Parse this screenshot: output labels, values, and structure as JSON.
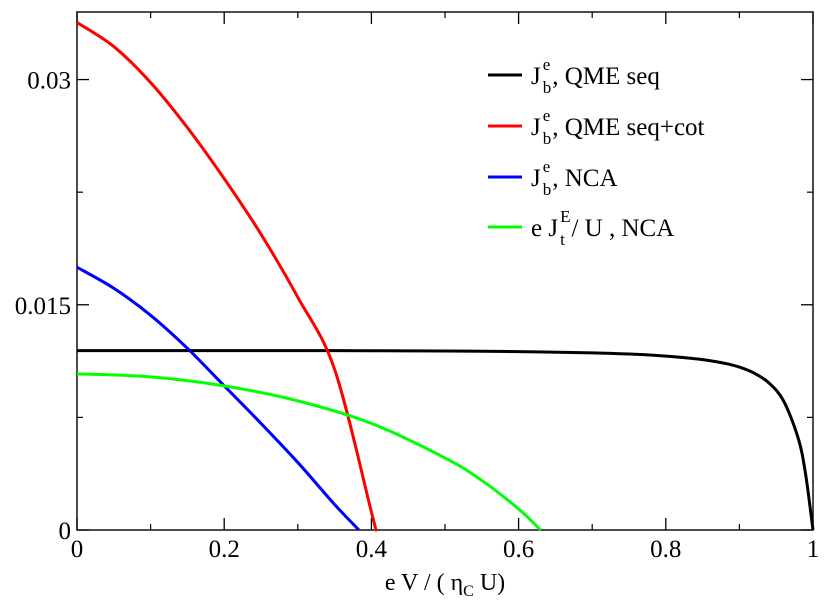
{
  "chart_data": {
    "type": "line",
    "title": "",
    "xlabel": {
      "pre": "e V / ( ",
      "sym": "η",
      "sub": "C",
      "post": " U)"
    },
    "ylabel": "",
    "xlim": [
      0,
      1
    ],
    "ylim": [
      0,
      0.0345
    ],
    "xticks": [
      {
        "v": 0,
        "label": "0"
      },
      {
        "v": 0.2,
        "label": "0.2"
      },
      {
        "v": 0.4,
        "label": "0.4"
      },
      {
        "v": 0.6,
        "label": "0.6"
      },
      {
        "v": 0.8,
        "label": "0.8"
      },
      {
        "v": 1,
        "label": "1"
      }
    ],
    "xminor": [
      0.1,
      0.3,
      0.5,
      0.7,
      0.9
    ],
    "yticks": [
      {
        "v": 0,
        "label": "0"
      },
      {
        "v": 0.015,
        "label": "0.015"
      },
      {
        "v": 0.03,
        "label": "0.03"
      }
    ],
    "yminor": [
      0.0075,
      0.0225
    ],
    "legend_position": "top-right",
    "series": [
      {
        "name": "QME seq",
        "legend": {
          "pre": "J",
          "sup": "e",
          "sub": "b",
          "post": " , QME seq"
        },
        "color": "#000000",
        "x": [
          0,
          0.1,
          0.2,
          0.3,
          0.4,
          0.5,
          0.6,
          0.7,
          0.75,
          0.8,
          0.85,
          0.88,
          0.9,
          0.92,
          0.94,
          0.96,
          0.98,
          0.99,
          1.0
        ],
        "y": [
          0.01195,
          0.01195,
          0.01195,
          0.01195,
          0.01194,
          0.01192,
          0.01188,
          0.0118,
          0.01172,
          0.01158,
          0.01135,
          0.0111,
          0.01085,
          0.01045,
          0.0098,
          0.0086,
          0.0061,
          0.0037,
          0.0
        ]
      },
      {
        "name": "QME seq+cot",
        "legend": {
          "pre": "J",
          "sup": "e",
          "sub": "b",
          "post": " , QME seq+cot"
        },
        "color": "#ff0000",
        "x": [
          0,
          0.05,
          0.1,
          0.15,
          0.2,
          0.25,
          0.3,
          0.35,
          0.4,
          0.406
        ],
        "y": [
          0.0338,
          0.0322,
          0.0298,
          0.0268,
          0.0234,
          0.0197,
          0.0155,
          0.0107,
          0.0012,
          0.0
        ]
      },
      {
        "name": "NCA",
        "legend": {
          "pre": "J",
          "sup": "e",
          "sub": "b",
          "post": " , NCA"
        },
        "color": "#0000ff",
        "x": [
          0,
          0.05,
          0.1,
          0.15,
          0.2,
          0.25,
          0.3,
          0.35,
          0.383
        ],
        "y": [
          0.0175,
          0.0161,
          0.0143,
          0.0121,
          0.0096,
          0.0071,
          0.0045,
          0.0017,
          0.0
        ]
      },
      {
        "name": "e J_t^E / U, NCA",
        "legend": {
          "pre": "e J",
          "sup": "E",
          "sub": "t",
          "post": " / U , NCA"
        },
        "color": "#00ff00",
        "x": [
          0,
          0.1,
          0.2,
          0.3,
          0.4,
          0.5,
          0.55,
          0.6,
          0.63
        ],
        "y": [
          0.0104,
          0.0102,
          0.0096,
          0.0086,
          0.0071,
          0.0048,
          0.0033,
          0.0014,
          0.0
        ]
      }
    ]
  }
}
